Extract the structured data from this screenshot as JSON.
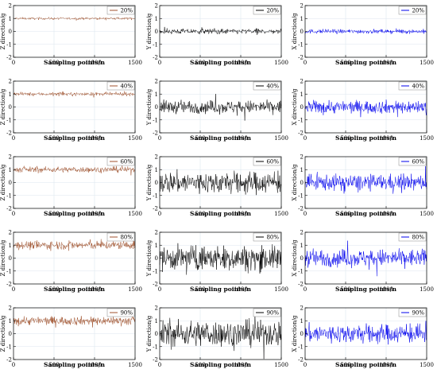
{
  "chart_data": {
    "type": "line",
    "layout": "5 rows x 3 columns of time-series panels",
    "xlabel": "Sampling points/n",
    "x_ticks": [
      0,
      500,
      1000,
      1500
    ],
    "xlim": [
      0,
      1500
    ],
    "ylim": [
      -2,
      2
    ],
    "y_ticks": [
      -2,
      -1,
      0,
      1,
      2
    ],
    "columns": [
      {
        "ylabel": "Z direction/g",
        "color": "#a0522d",
        "baseline": 1.0
      },
      {
        "ylabel": "Y direction/g",
        "color": "#000000",
        "baseline": 0.0
      },
      {
        "ylabel": "X direction/g",
        "color": "#0000ee",
        "baseline": 0.0
      }
    ],
    "rows": [
      {
        "legend": "20%",
        "amplitude": [
          0.08,
          0.18,
          0.15
        ]
      },
      {
        "legend": "40%",
        "amplitude": [
          0.12,
          0.45,
          0.45
        ]
      },
      {
        "legend": "60%",
        "amplitude": [
          0.2,
          0.75,
          0.55
        ]
      },
      {
        "legend": "80%",
        "amplitude": [
          0.3,
          0.85,
          0.6
        ]
      },
      {
        "legend": "90%",
        "amplitude": [
          0.3,
          0.9,
          0.65
        ]
      }
    ],
    "grid": true,
    "legend_position": "top-right"
  }
}
